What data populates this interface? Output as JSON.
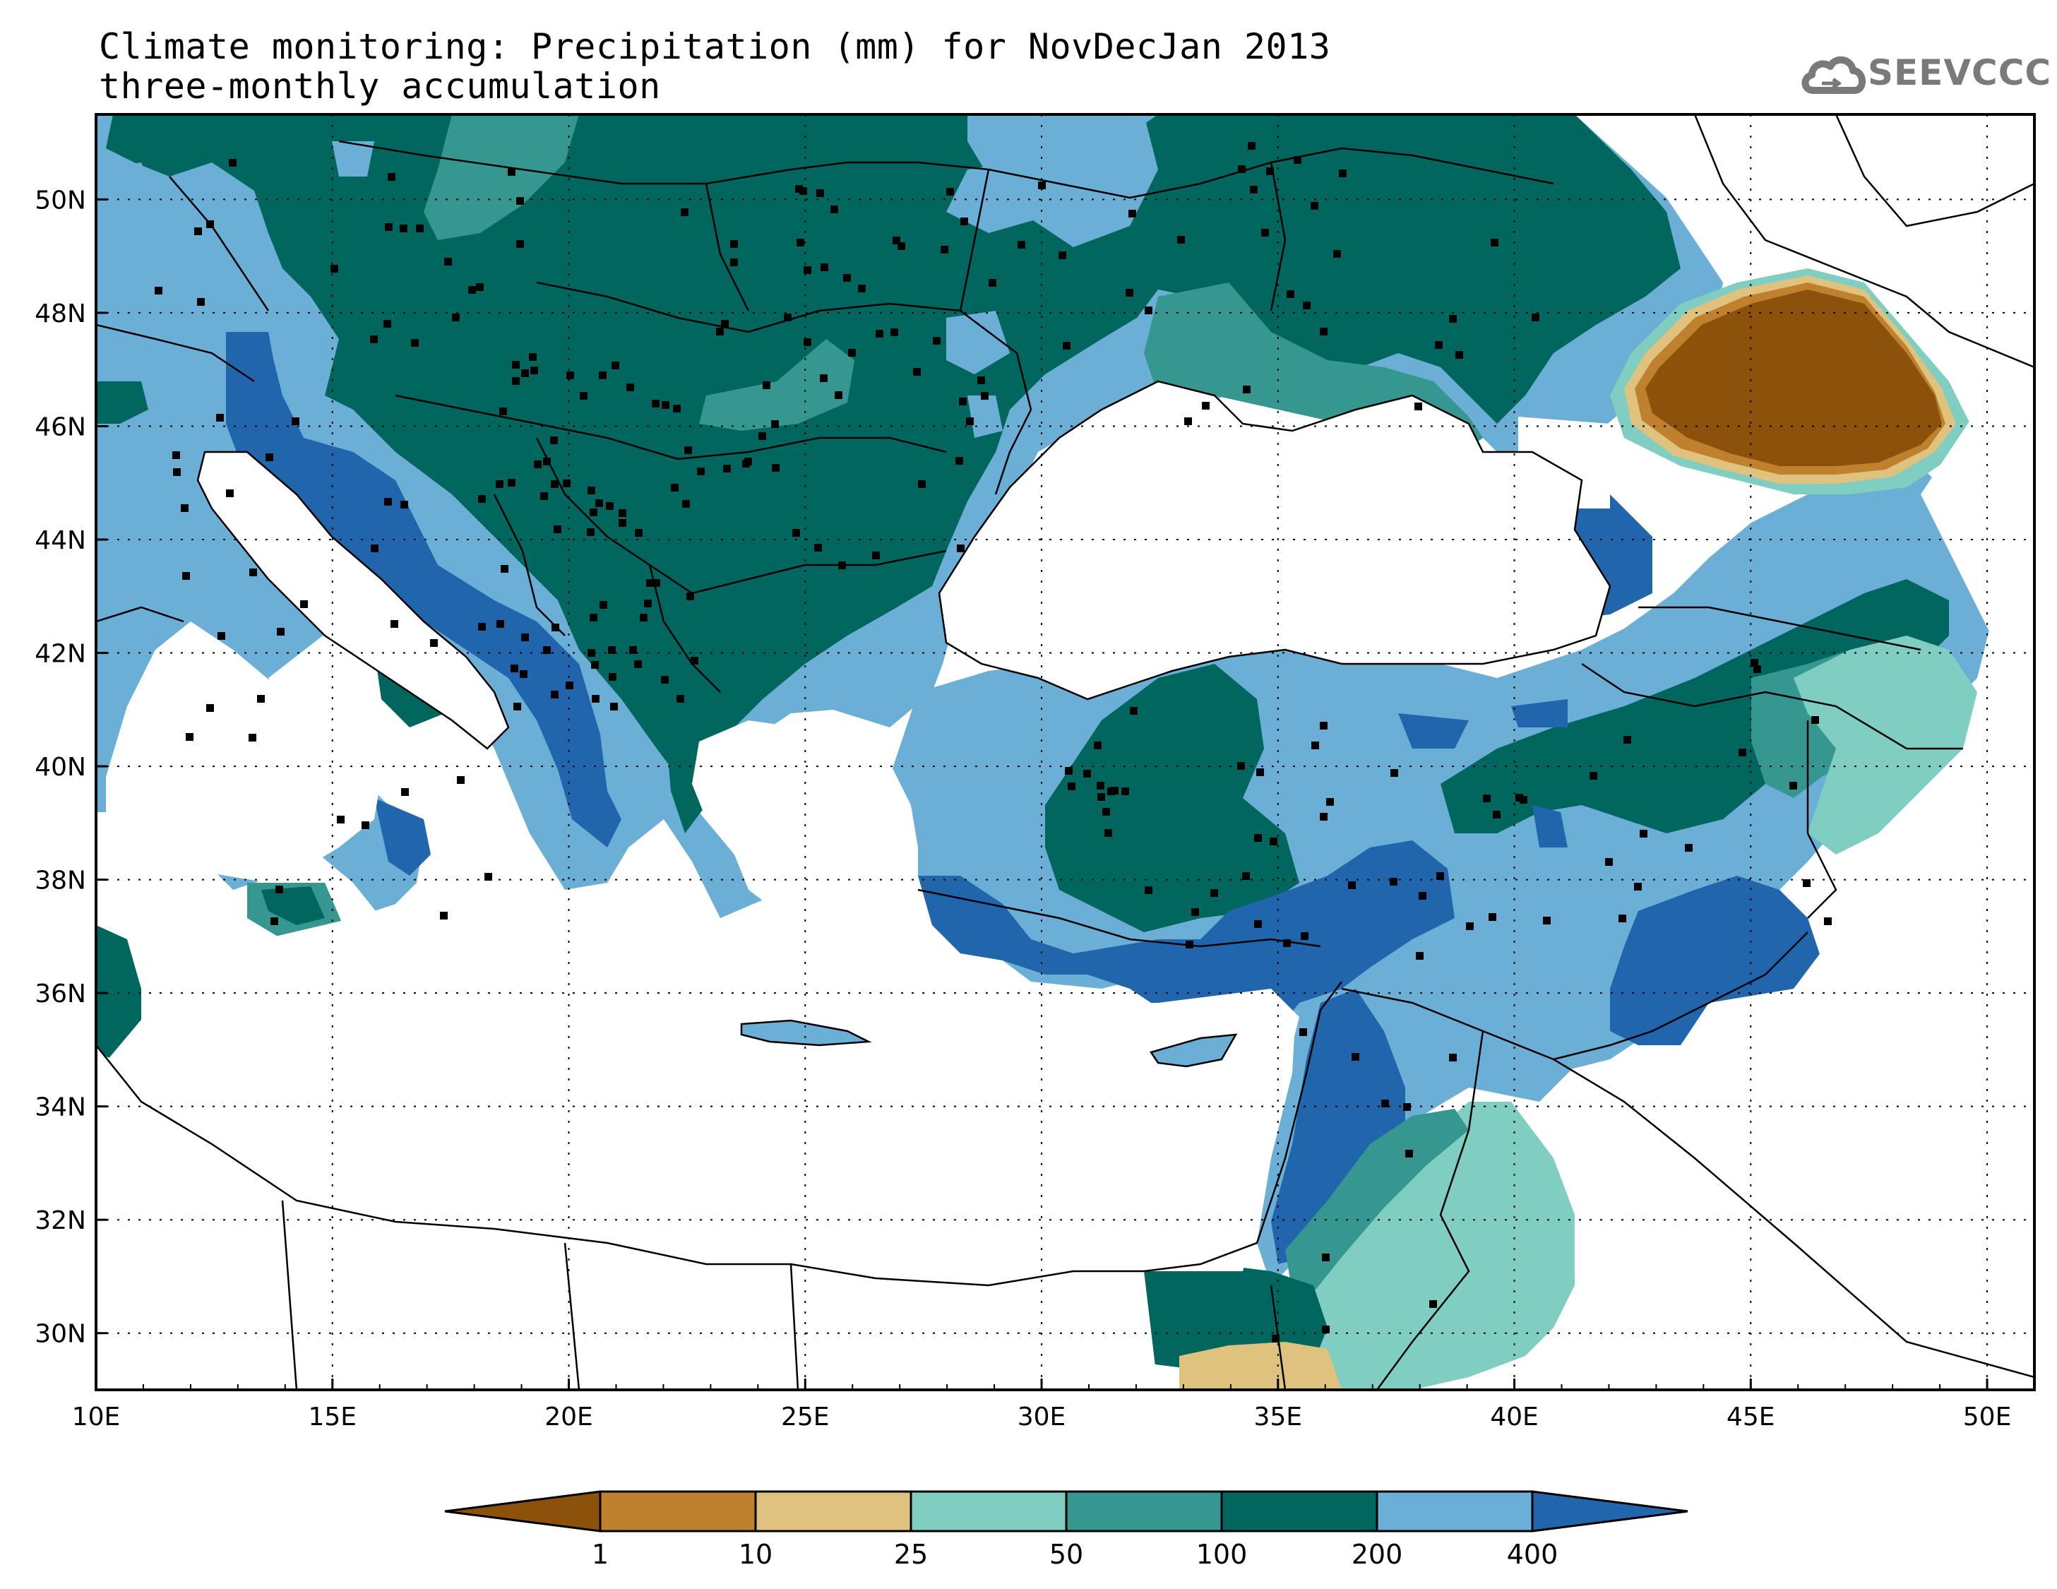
{
  "title": "Climate monitoring: Precipitation (mm) for NovDecJan 2013",
  "subtitle": "three-monthly accumulation",
  "logo": {
    "text": "SEEVCCC",
    "icon": "cloud-icon"
  },
  "map": {
    "lon_range": [
      10,
      51
    ],
    "lat_range": [
      29,
      51.5
    ],
    "x_ticks": [
      "10E",
      "15E",
      "20E",
      "25E",
      "30E",
      "35E",
      "40E",
      "45E",
      "50E"
    ],
    "x_tick_values": [
      10,
      15,
      20,
      25,
      30,
      35,
      40,
      45,
      50
    ],
    "y_ticks": [
      "30N",
      "32N",
      "34N",
      "36N",
      "38N",
      "40N",
      "42N",
      "44N",
      "46N",
      "48N",
      "50N"
    ],
    "y_tick_values": [
      30,
      32,
      34,
      36,
      38,
      40,
      42,
      44,
      46,
      48,
      50
    ],
    "grid": "dotted"
  },
  "colorbar": {
    "labels": [
      "1",
      "10",
      "25",
      "50",
      "100",
      "200",
      "400"
    ],
    "colors": [
      "#8c510a",
      "#bf812d",
      "#dfc27d",
      "#80cdc1",
      "#35978f",
      "#01665e",
      "#6baed6",
      "#2166ac"
    ]
  }
}
